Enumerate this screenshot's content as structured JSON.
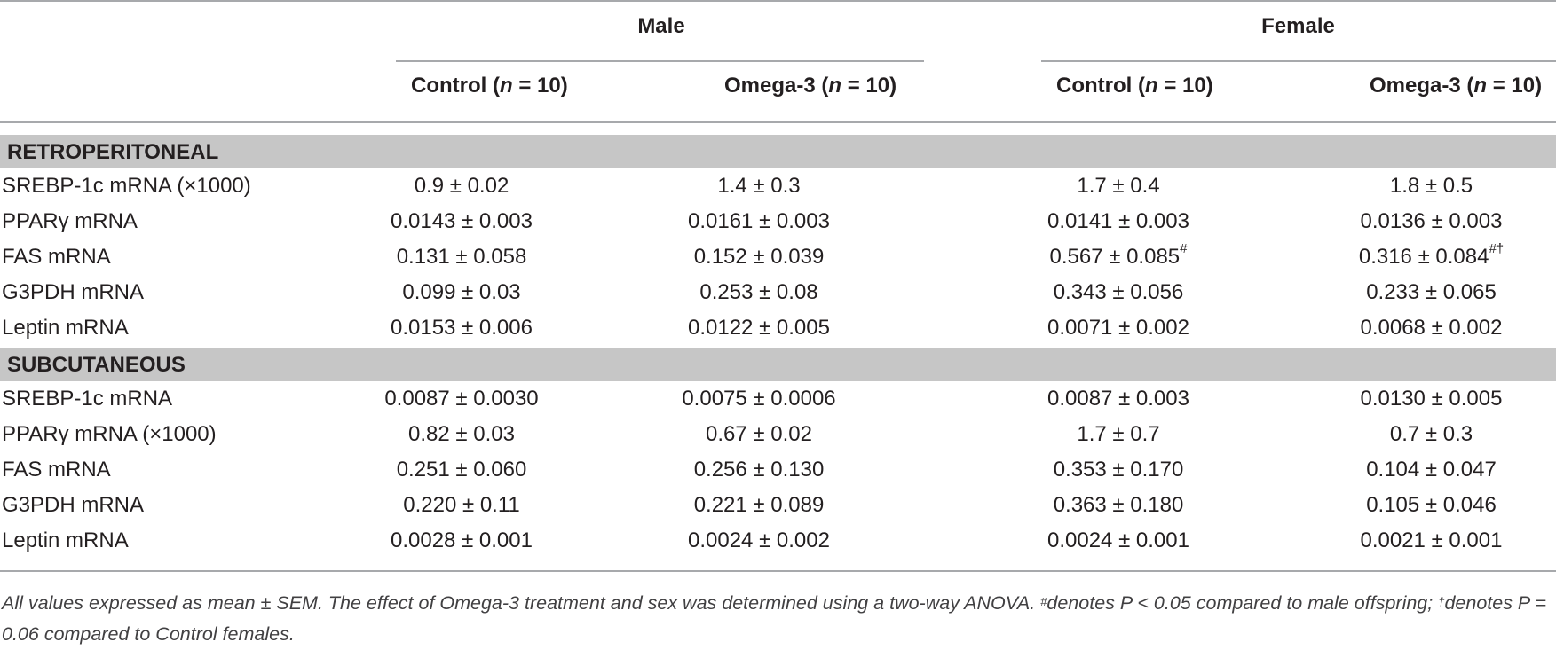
{
  "header": {
    "groups": [
      "Male",
      "Female"
    ],
    "columns": [
      {
        "label": "Control",
        "n": "n",
        "eq": " = 10"
      },
      {
        "label": "Omega-3",
        "n": "n",
        "eq": " = 10"
      },
      {
        "label": "Control",
        "n": "n",
        "eq": " = 10"
      },
      {
        "label": "Omega-3",
        "n": "n",
        "eq": " = 10"
      }
    ]
  },
  "sections": [
    {
      "title": "RETROPERITONEAL",
      "rows": [
        {
          "label": "SREBP-1c mRNA (×1000)",
          "values": [
            "0.9 ± 0.02",
            "1.4 ± 0.3",
            "1.7 ± 0.4",
            "1.8 ± 0.5"
          ],
          "marks": [
            "",
            "",
            "",
            ""
          ]
        },
        {
          "label": "PPARγ mRNA",
          "values": [
            "0.0143 ± 0.003",
            "0.0161 ±  0.003",
            "0.0141 ± 0.003",
            "0.0136 ± 0.003"
          ],
          "marks": [
            "",
            "",
            "",
            ""
          ]
        },
        {
          "label": "FAS mRNA",
          "values": [
            "0.131 ± 0.058",
            "0.152 ± 0.039",
            "0.567 ± 0.085",
            "0.316 ± 0.084"
          ],
          "marks": [
            "",
            "",
            "#",
            "#†"
          ]
        },
        {
          "label": "G3PDH mRNA",
          "values": [
            "0.099 ± 0.03",
            "0.253 ± 0.08",
            "0.343 ± 0.056",
            "0.233 ± 0.065"
          ],
          "marks": [
            "",
            "",
            "",
            ""
          ]
        },
        {
          "label": "Leptin mRNA",
          "values": [
            "0.0153 ± 0.006",
            "0.0122 ± 0.005",
            "0.0071 ± 0.002",
            "0.0068 ± 0.002"
          ],
          "marks": [
            "",
            "",
            "",
            ""
          ]
        }
      ]
    },
    {
      "title": "SUBCUTANEOUS",
      "rows": [
        {
          "label": "SREBP-1c mRNA",
          "values": [
            "0.0087 ± 0.0030",
            "0.0075 ± 0.0006",
            "0.0087 ± 0.003",
            "0.0130 ± 0.005"
          ],
          "marks": [
            "",
            "",
            "",
            ""
          ]
        },
        {
          "label": "PPARγ mRNA (×1000)",
          "values": [
            "0.82 ± 0.03",
            "0.67 ±  0.02",
            "1.7 ± 0.7",
            "0.7 ± 0.3"
          ],
          "marks": [
            "",
            "",
            "",
            ""
          ]
        },
        {
          "label": "FAS mRNA",
          "values": [
            "0.251 ± 0.060",
            "0.256 ± 0.130",
            "0.353 ± 0.170",
            "0.104 ± 0.047"
          ],
          "marks": [
            "",
            "",
            "",
            ""
          ]
        },
        {
          "label": "G3PDH mRNA",
          "values": [
            "0.220 ± 0.11",
            "0.221 ± 0.089",
            "0.363 ± 0.180",
            "0.105 ± 0.046"
          ],
          "marks": [
            "",
            "",
            "",
            ""
          ]
        },
        {
          "label": "Leptin mRNA",
          "values": [
            "0.0028 ± 0.001",
            "0.0024 ± 0.002",
            "0.0024 ± 0.001",
            "0.0021 ± 0.001"
          ],
          "marks": [
            "",
            "",
            "",
            ""
          ]
        }
      ]
    }
  ],
  "footnote": {
    "part1": "All values expressed as mean ± SEM. The effect of Omega-3 treatment and sex was determined using a two-way ANOVA. ",
    "mark1": "#",
    "part2": "denotes P < 0.05 compared to male offspring; ",
    "mark2": "†",
    "part3": "denotes P = 0.06 compared to Control females."
  }
}
